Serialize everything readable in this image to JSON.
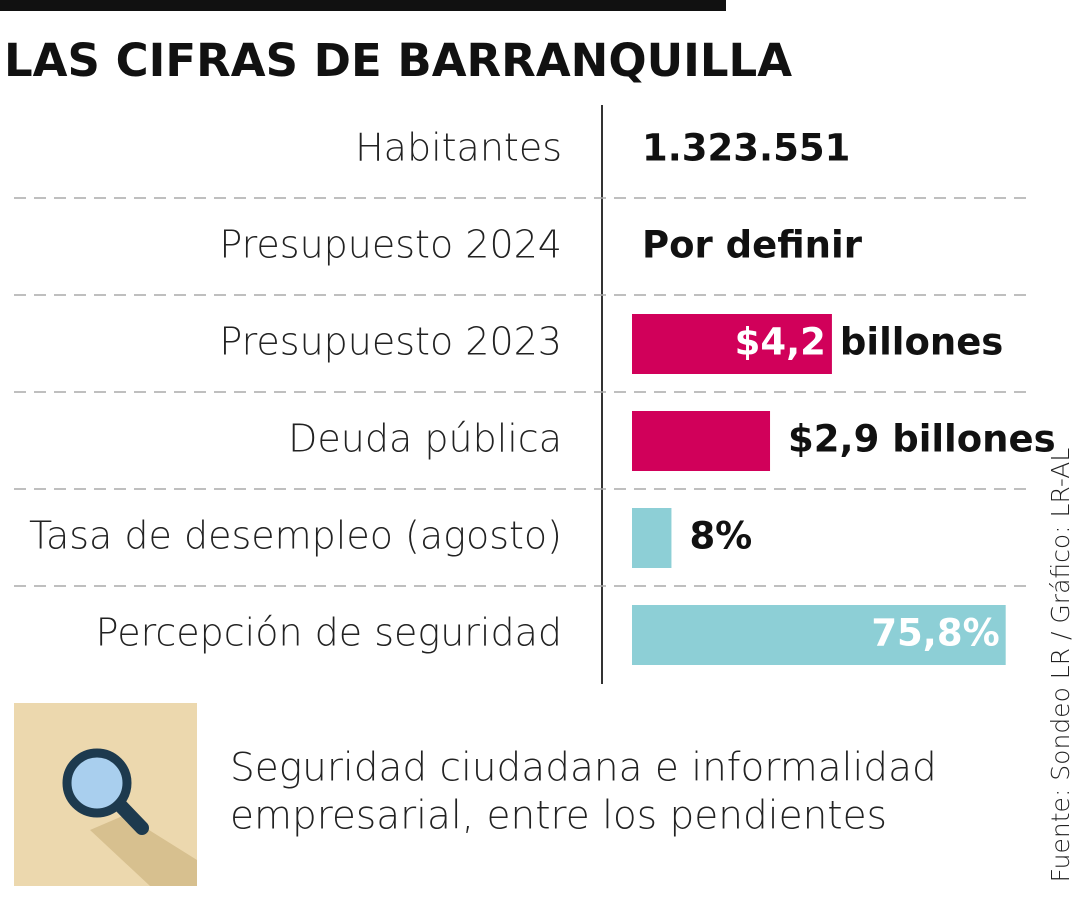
{
  "title": "LAS CIFRAS DE BARRANQUILLA",
  "rows": [
    {
      "label": "Habitantes",
      "value": "1.323.551"
    },
    {
      "label": "Presupuesto 2024",
      "value": "Por definir"
    },
    {
      "label": "Presupuesto 2023",
      "bar": {
        "value": 4.2,
        "value_label": "$4,2",
        "unit": "billones",
        "color": "#d1005a",
        "label_inside": true
      }
    },
    {
      "label": "Deuda pública",
      "bar": {
        "value": 2.9,
        "value_label": "$2,9 billones",
        "color": "#d1005a",
        "label_inside": false
      }
    },
    {
      "label": "Tasa de desempleo (agosto)",
      "bar": {
        "value": 8,
        "value_label": "8%",
        "color": "#8dcfd6",
        "label_inside": false
      }
    },
    {
      "label": "Percepción de seguridad",
      "bar": {
        "value": 75.8,
        "value_label": "75,8%",
        "color": "#8dcfd6",
        "label_inside": true
      }
    }
  ],
  "note": {
    "lines": [
      "Seguridad ciudadana e informalidad",
      "empresarial, entre los pendientes"
    ]
  },
  "source": "Fuente: Sondeo LR / Gráfico: LR-AL"
}
